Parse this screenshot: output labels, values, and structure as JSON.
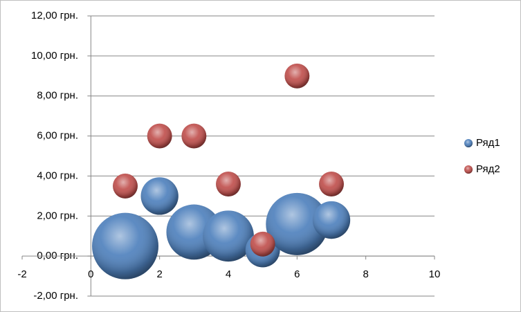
{
  "chart_data": {
    "type": "bubble",
    "x": [
      1,
      2,
      3,
      4,
      5,
      6,
      7
    ],
    "series": [
      {
        "name": "Ряд1",
        "color": "#4f81bd",
        "values": [
          0.5,
          3.0,
          1.2,
          1.0,
          0.3,
          1.6,
          1.8
        ],
        "sizes": [
          10,
          3.2,
          6.9,
          5.9,
          2.7,
          8.8,
          3.2
        ]
      },
      {
        "name": "Ряд2",
        "color": "#c0504d",
        "values": [
          3.5,
          6.0,
          6.0,
          3.6,
          0.6,
          9.0,
          3.6
        ],
        "sizes": [
          1.4,
          1.4,
          1.4,
          1.4,
          1.4,
          1.4,
          1.4
        ]
      }
    ],
    "xlim": [
      -2,
      10
    ],
    "xticks": [
      -2,
      0,
      2,
      4,
      6,
      8,
      10
    ],
    "ylim": [
      -2,
      12
    ],
    "yticks": [
      {
        "value": -2,
        "label": "-2,00 грн."
      },
      {
        "value": 0,
        "label": "0,00 грн."
      },
      {
        "value": 2,
        "label": "2,00 грн."
      },
      {
        "value": 4,
        "label": "4,00 грн."
      },
      {
        "value": 6,
        "label": "6,00 грн."
      },
      {
        "value": 8,
        "label": "8,00 грн."
      },
      {
        "value": 10,
        "label": "10,00 грн."
      },
      {
        "value": 12,
        "label": "12,00 грн."
      }
    ],
    "grid": true,
    "legend": "right"
  }
}
